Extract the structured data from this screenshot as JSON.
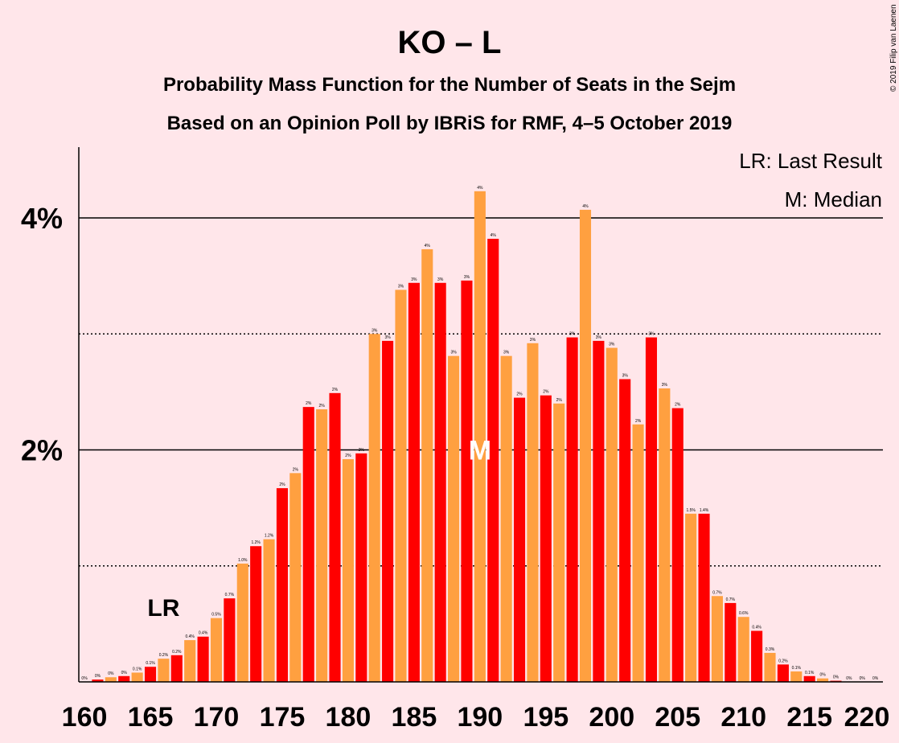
{
  "chart_data": {
    "type": "bar",
    "title": "KO – L",
    "subtitle1": "Probability Mass Function for the Number of Seats in the Sejm",
    "subtitle2": "Based on an Opinion Poll by IBRiS for RMF, 4–5 October 2019",
    "credit": "© 2019 Filip van Laenen",
    "legend": {
      "lr": "LR: Last Result",
      "m": "M: Median"
    },
    "lr_label": "LR",
    "median_label": "M",
    "last_result": 166,
    "median": 190,
    "x": [
      160,
      161,
      162,
      163,
      164,
      165,
      166,
      167,
      168,
      169,
      170,
      171,
      172,
      173,
      174,
      175,
      176,
      177,
      178,
      179,
      180,
      181,
      182,
      183,
      184,
      185,
      186,
      187,
      188,
      189,
      190,
      191,
      192,
      193,
      194,
      195,
      196,
      197,
      198,
      199,
      200,
      201,
      202,
      203,
      204,
      205,
      206,
      207,
      208,
      209,
      210,
      211,
      212,
      213,
      214,
      215,
      216,
      217,
      218,
      219,
      220
    ],
    "values": [
      0.0,
      0.02,
      0.04,
      0.05,
      0.08,
      0.13,
      0.2,
      0.23,
      0.36,
      0.39,
      0.55,
      0.72,
      1.02,
      1.17,
      1.23,
      1.67,
      1.8,
      2.37,
      2.35,
      2.49,
      1.92,
      1.97,
      3.0,
      2.94,
      3.38,
      3.44,
      3.73,
      3.44,
      2.81,
      3.46,
      4.23,
      3.82,
      2.81,
      2.45,
      2.92,
      2.47,
      2.4,
      2.97,
      4.07,
      2.94,
      2.88,
      2.61,
      2.22,
      2.97,
      2.53,
      2.36,
      1.45,
      1.45,
      0.74,
      0.68,
      0.56,
      0.44,
      0.25,
      0.15,
      0.09,
      0.05,
      0.03,
      0.01,
      0.0,
      0.0,
      0.0
    ],
    "value_labels": [
      "0%",
      "0%",
      "0%",
      "0%",
      "0.1%",
      "0.1%",
      "0.2%",
      "0.2%",
      "0.4%",
      "0.4%",
      "0.5%",
      "0.7%",
      "1.0%",
      "1.2%",
      "1.2%",
      "2%",
      "2%",
      "2%",
      "2%",
      "2%",
      "2%",
      "2%",
      "3%",
      "3%",
      "3%",
      "3%",
      "4%",
      "3%",
      "3%",
      "3%",
      "4%",
      "4%",
      "3%",
      "2%",
      "3%",
      "2%",
      "2%",
      "3%",
      "4%",
      "3%",
      "3%",
      "3%",
      "2%",
      "3%",
      "3%",
      "2%",
      "1.5%",
      "1.4%",
      "0.7%",
      "0.7%",
      "0.6%",
      "0.4%",
      "0.3%",
      "0.2%",
      "0.1%",
      "0.1%",
      "0%",
      "0%",
      "0%",
      "0%",
      "0%"
    ],
    "x_ticks": [
      "160",
      "165",
      "170",
      "175",
      "180",
      "185",
      "190",
      "195",
      "200",
      "205",
      "210",
      "215",
      "220"
    ],
    "y_ticks": [
      "2%",
      "4%"
    ],
    "ylim": [
      0,
      4.6
    ],
    "colors": {
      "red": "#FF0000",
      "orange": "#FFA040",
      "background": "#FFE6EA"
    }
  }
}
